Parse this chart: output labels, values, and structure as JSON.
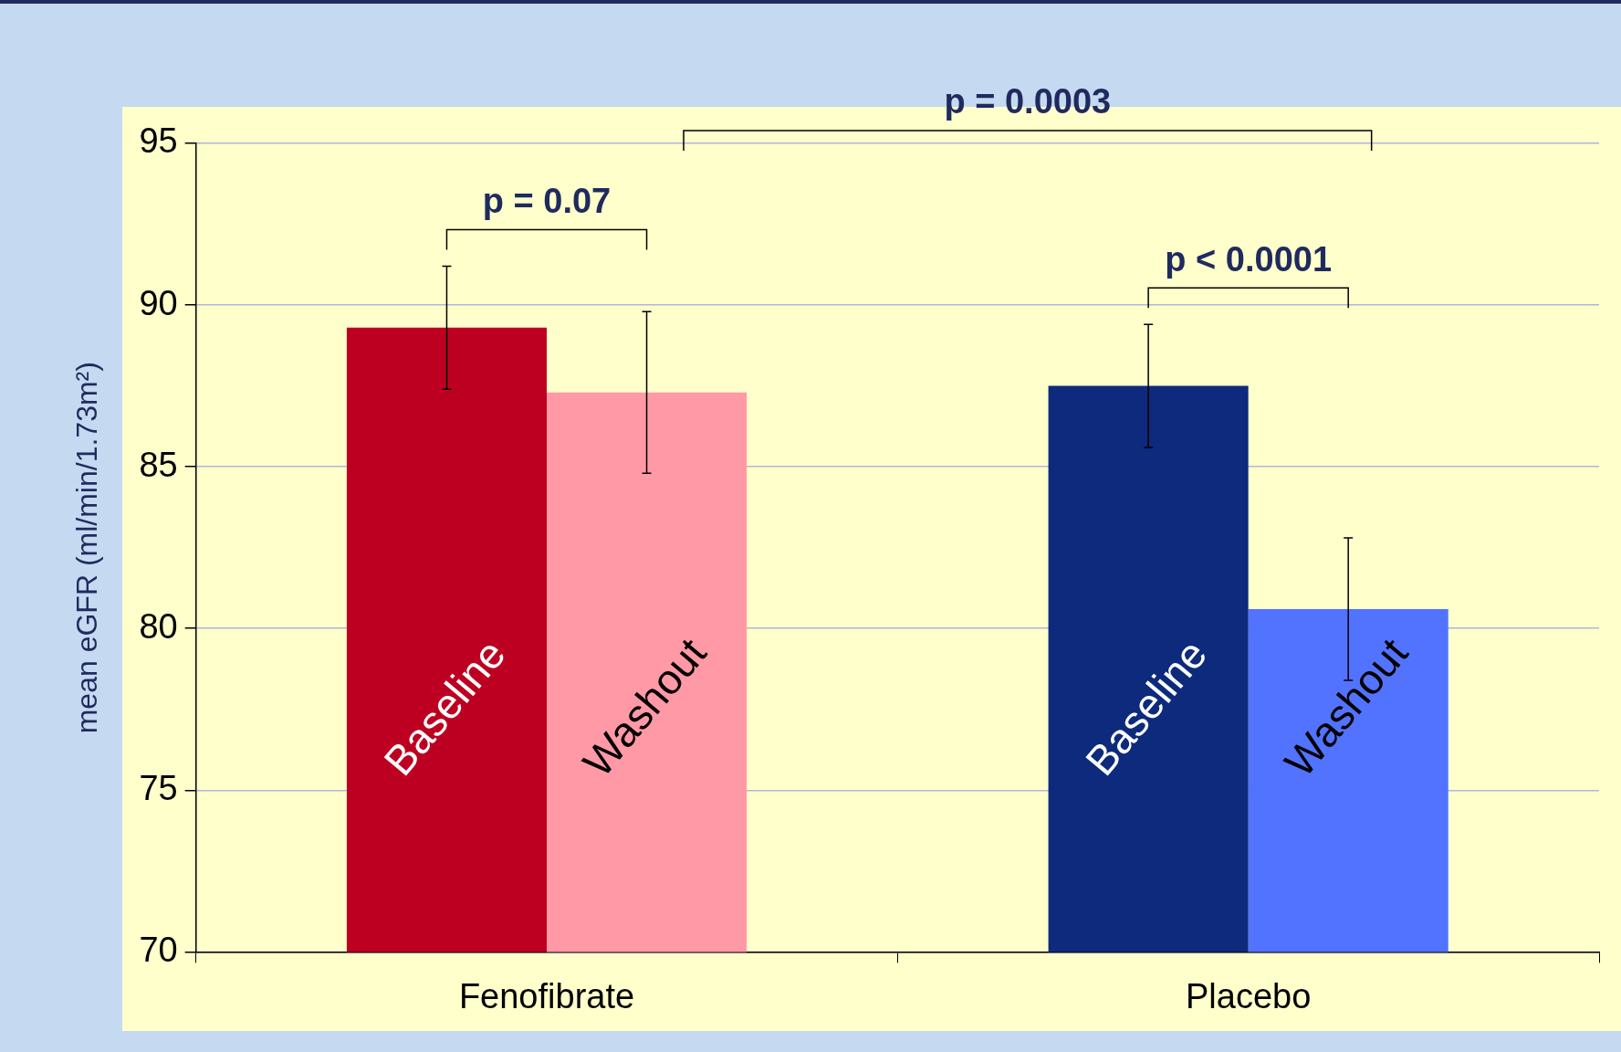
{
  "chart_data": {
    "type": "bar",
    "ylabel": "mean eGFR (ml/min/1.73m²)",
    "categories": [
      "Fenofibrate",
      "Placebo"
    ],
    "series": [
      {
        "name": "Baseline",
        "colors": [
          "#bd0021",
          "#0d2a7c"
        ],
        "values": [
          89.3,
          87.5
        ],
        "errors": [
          1.9,
          1.9
        ]
      },
      {
        "name": "Washout",
        "colors": [
          "#ff99a6",
          "#5273ff"
        ],
        "values": [
          87.3,
          80.6
        ],
        "errors": [
          2.5,
          2.2
        ]
      }
    ],
    "ylim": [
      70,
      95
    ],
    "yticks": [
      70,
      75,
      80,
      85,
      90,
      95
    ],
    "grid": "y",
    "legend": false,
    "annotations": [
      "p = 0.07",
      "p < 0.0001",
      "p = 0.0003"
    ]
  }
}
